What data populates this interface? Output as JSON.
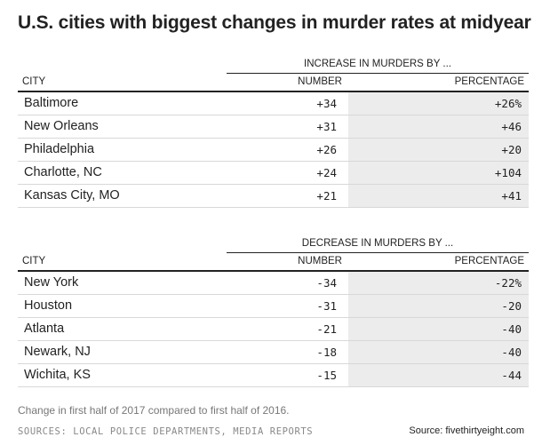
{
  "title": "U.S. cities with biggest changes in murder rates at midyear",
  "chart_data": {
    "type": "table",
    "tables": [
      {
        "group_header": "INCREASE IN MURDERS BY ...",
        "columns": [
          "CITY",
          "NUMBER",
          "PERCENTAGE"
        ],
        "rows": [
          {
            "city": "Baltimore",
            "number": "+34",
            "percentage": "+26%"
          },
          {
            "city": "New Orleans",
            "number": "+31",
            "percentage": "+46"
          },
          {
            "city": "Philadelphia",
            "number": "+26",
            "percentage": "+20"
          },
          {
            "city": "Charlotte, NC",
            "number": "+24",
            "percentage": "+104"
          },
          {
            "city": "Kansas City, MO",
            "number": "+21",
            "percentage": "+41"
          }
        ]
      },
      {
        "group_header": "DECREASE IN MURDERS BY ...",
        "columns": [
          "CITY",
          "NUMBER",
          "PERCENTAGE"
        ],
        "rows": [
          {
            "city": "New York",
            "number": "-34",
            "percentage": "-22%"
          },
          {
            "city": "Houston",
            "number": "-31",
            "percentage": "-20"
          },
          {
            "city": "Atlanta",
            "number": "-21",
            "percentage": "-40"
          },
          {
            "city": "Newark, NJ",
            "number": "-18",
            "percentage": "-40"
          },
          {
            "city": "Wichita, KS",
            "number": "-15",
            "percentage": "-44"
          }
        ]
      }
    ]
  },
  "footer": {
    "note": "Change in first half of 2017 compared to first half of 2016.",
    "sources": "SOURCES: LOCAL POLICE DEPARTMENTS, MEDIA REPORTS",
    "credit": "Source: fivethirtyeight.com"
  }
}
